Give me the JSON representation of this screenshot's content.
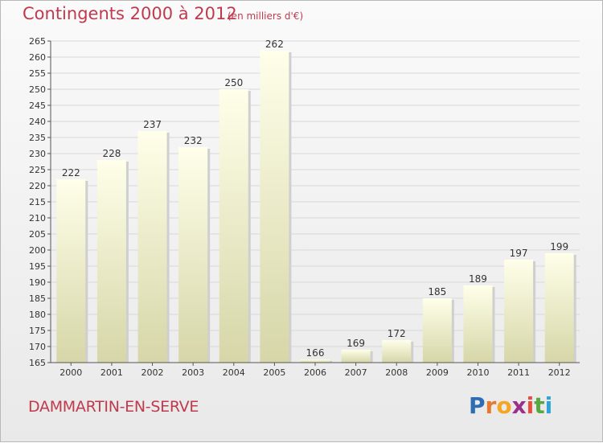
{
  "title": "Contingents 2000 à 2012",
  "subtitle": "(en milliers d'€)",
  "footer_label": "DAMMARTIN-EN-SERVE",
  "logo": {
    "letters": [
      "P",
      "r",
      "o",
      "x",
      "i",
      "t",
      "i"
    ],
    "colors": [
      "#2d6db5",
      "#e7782f",
      "#f5a623",
      "#9b2f8c",
      "#e94e3c",
      "#57a842",
      "#2aa4d9"
    ]
  },
  "colors": {
    "title": "#c03a4e",
    "bar_top": "#ffffea",
    "bar_bottom": "#d6d6a8",
    "grid": "#d8d8d8",
    "axis": "#555555"
  },
  "chart_data": {
    "type": "bar",
    "categories": [
      "2000",
      "2001",
      "2002",
      "2003",
      "2004",
      "2005",
      "2006",
      "2007",
      "2008",
      "2009",
      "2010",
      "2011",
      "2012"
    ],
    "values": [
      222,
      228,
      237,
      232,
      250,
      262,
      166,
      169,
      172,
      185,
      189,
      197,
      199
    ],
    "value_labels": [
      "222",
      "228",
      "237",
      "232",
      "250",
      "262",
      "166",
      "169",
      "172",
      "185",
      "189",
      "197",
      "199"
    ],
    "ylim": [
      165,
      265
    ],
    "yticks": [
      "165",
      "170",
      "175",
      "180",
      "185",
      "190",
      "195",
      "200",
      "205",
      "210",
      "215",
      "220",
      "225",
      "230",
      "235",
      "240",
      "245",
      "250",
      "255",
      "260",
      "265"
    ],
    "grid": true,
    "xlabel": "",
    "ylabel": ""
  }
}
